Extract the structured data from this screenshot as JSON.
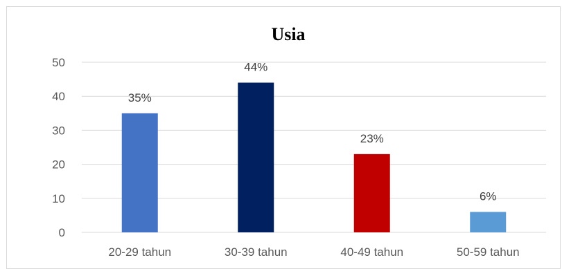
{
  "chart_data": {
    "type": "bar",
    "title": "Usia",
    "categories": [
      "20-29 tahun",
      "30-39 tahun",
      "40-49 tahun",
      "50-59 tahun"
    ],
    "values": [
      35,
      44,
      23,
      6
    ],
    "data_labels": [
      "35%",
      "44%",
      "23%",
      "6%"
    ],
    "colors": [
      "#4472C4",
      "#002060",
      "#C00000",
      "#5B9BD5"
    ],
    "yticks": [
      "0",
      "10",
      "20",
      "30",
      "40",
      "50"
    ],
    "ylim": [
      0,
      50
    ],
    "grid": true,
    "legend": "none"
  }
}
